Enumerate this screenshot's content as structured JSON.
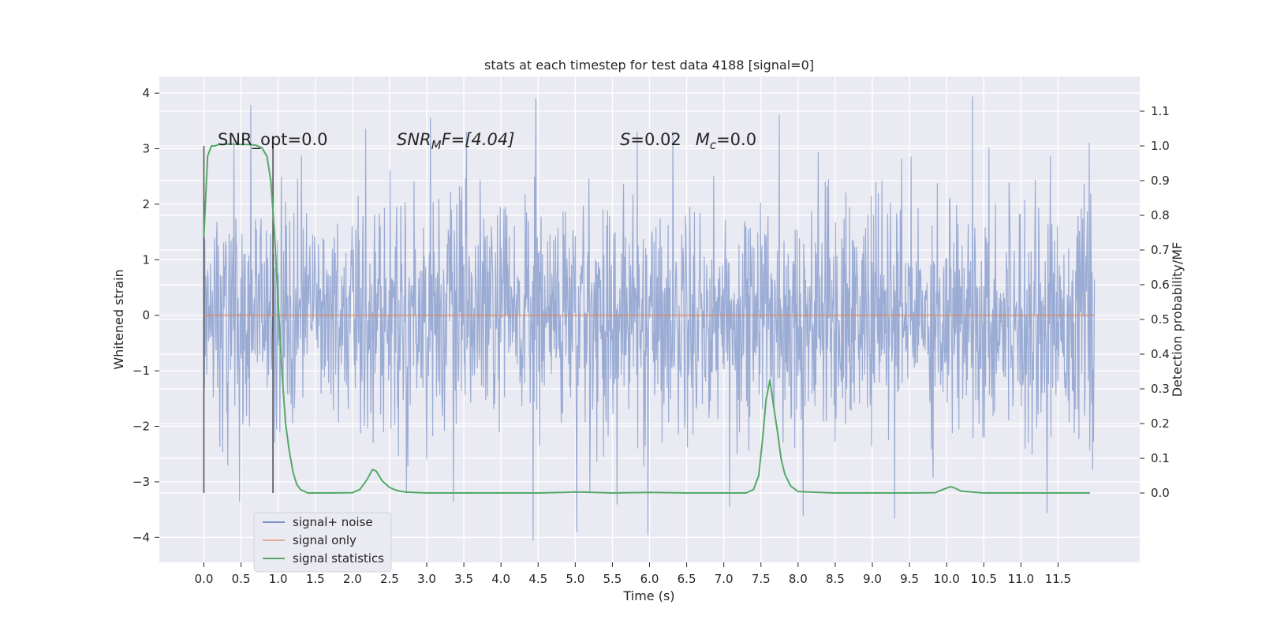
{
  "chart_data": {
    "type": "line",
    "title": "stats at each timestep for test data 4188 [signal=0]",
    "xlabel": "Time (s)",
    "ylabel": "Whitened strain",
    "y2label": "Detection probability/MF",
    "xlim": [
      -0.6,
      12.6
    ],
    "ylim": [
      -4.45,
      4.3
    ],
    "y2lim": [
      -0.2,
      1.2
    ],
    "x_ticks": [
      0.0,
      0.5,
      1.0,
      1.5,
      2.0,
      2.5,
      3.0,
      3.5,
      4.0,
      4.5,
      5.0,
      5.5,
      6.0,
      6.5,
      7.0,
      7.5,
      8.0,
      8.5,
      9.0,
      9.5,
      10.0,
      10.5,
      11.0,
      11.5
    ],
    "x_tick_labels": [
      "0.0",
      "0.5",
      "1.0",
      "1.5",
      "2.0",
      "2.5",
      "3.0",
      "3.5",
      "4.0",
      "4.5",
      "5.0",
      "5.5",
      "6.0",
      "6.5",
      "7.0",
      "7.5",
      "8.0",
      "8.5",
      "9.0",
      "9.5",
      "10.0",
      "10.5",
      "11.0",
      "11.5"
    ],
    "y_ticks": [
      -4,
      -3,
      -2,
      -1,
      0,
      1,
      2,
      3,
      4
    ],
    "y_tick_labels": [
      "−4",
      "−3",
      "−2",
      "−1",
      "0",
      "1",
      "2",
      "3",
      "4"
    ],
    "y2_ticks": [
      0.0,
      0.1,
      0.2,
      0.3,
      0.4,
      0.5,
      0.6,
      0.7,
      0.8,
      0.9,
      1.0,
      1.1
    ],
    "y2_tick_labels": [
      "0.0",
      "0.1",
      "0.2",
      "0.3",
      "0.4",
      "0.5",
      "0.6",
      "0.7",
      "0.8",
      "0.9",
      "1.0",
      "1.1"
    ],
    "grid": true,
    "legend_placement": "lower-left",
    "annotations": {
      "snr_opt": "SNR_opt=0.0",
      "snr_mf_prefix": "SNR",
      "snr_mf_sub": "M",
      "snr_mf_suffix": "F=[4.04]",
      "s_label": "S",
      "s_value": "=0.02",
      "mc_label": "M",
      "mc_sub": "c",
      "mc_value": "=0.0"
    },
    "series": [
      {
        "name": "signal+ noise",
        "color": "#7b93c7",
        "kind": "noise",
        "x_range": [
          0.0,
          11.99
        ],
        "envelope_min": -4.05,
        "envelope_max": 3.93,
        "outliers": [
          {
            "x": 0.63,
            "y": 3.78
          },
          {
            "x": 4.47,
            "y": 3.9
          },
          {
            "x": 10.35,
            "y": 3.93
          },
          {
            "x": 4.43,
            "y": -4.05
          },
          {
            "x": 5.02,
            "y": -3.9
          },
          {
            "x": 5.98,
            "y": -3.95
          },
          {
            "x": 0.48,
            "y": -3.35
          },
          {
            "x": 3.36,
            "y": -3.35
          },
          {
            "x": 9.3,
            "y": -3.65
          },
          {
            "x": 11.35,
            "y": -3.55
          },
          {
            "x": 8.07,
            "y": -3.6
          },
          {
            "x": 7.08,
            "y": -3.45
          },
          {
            "x": 5.56,
            "y": -3.4
          },
          {
            "x": 3.05,
            "y": 3.55
          },
          {
            "x": 7.75,
            "y": 3.6
          },
          {
            "x": 2.18,
            "y": 3.35
          },
          {
            "x": 11.92,
            "y": 3.1
          }
        ]
      },
      {
        "name": "signal only",
        "color": "#dd8452",
        "kind": "flat",
        "x": [
          0.0,
          11.99
        ],
        "y": [
          0.0,
          0.0
        ]
      },
      {
        "name": "signal statistics",
        "color": "#55a868",
        "kind": "line",
        "axis": "right",
        "x": [
          0.0,
          0.05,
          0.1,
          0.15,
          0.2,
          0.3,
          0.4,
          0.5,
          0.6,
          0.7,
          0.78,
          0.85,
          0.9,
          0.95,
          1.0,
          1.05,
          1.1,
          1.15,
          1.2,
          1.25,
          1.3,
          1.4,
          1.5,
          1.7,
          2.0,
          2.1,
          2.2,
          2.27,
          2.32,
          2.4,
          2.5,
          2.6,
          2.7,
          3.0,
          3.5,
          4.0,
          4.5,
          4.9,
          5.0,
          5.2,
          5.5,
          6.0,
          6.5,
          7.0,
          7.3,
          7.4,
          7.47,
          7.52,
          7.57,
          7.62,
          7.67,
          7.72,
          7.77,
          7.82,
          7.9,
          8.0,
          8.5,
          9.0,
          9.5,
          9.85,
          9.95,
          10.05,
          10.1,
          10.2,
          10.5,
          11.0,
          11.5,
          11.93
        ],
        "y": [
          0.74,
          0.97,
          1.0,
          1.0,
          1.004,
          1.005,
          1.005,
          1.004,
          1.004,
          1.002,
          0.995,
          0.97,
          0.9,
          0.75,
          0.55,
          0.35,
          0.2,
          0.12,
          0.06,
          0.025,
          0.01,
          0.0,
          0.0,
          0.0,
          0.001,
          0.01,
          0.04,
          0.068,
          0.063,
          0.035,
          0.016,
          0.007,
          0.003,
          0.0,
          0.0,
          0.0,
          0.0,
          0.002,
          0.003,
          0.002,
          0.0,
          0.0015,
          0.0,
          0.0,
          0.0,
          0.01,
          0.05,
          0.15,
          0.27,
          0.325,
          0.25,
          0.18,
          0.1,
          0.055,
          0.02,
          0.004,
          0.0,
          0.0,
          0.0,
          0.001,
          0.01,
          0.018,
          0.015,
          0.005,
          0.0,
          0.0,
          0.0,
          0.0
        ]
      }
    ],
    "vertical_markers": [
      {
        "x": 0.0,
        "y_from": -3.2,
        "y_to": 3.05
      },
      {
        "x": 0.93,
        "y_from": -3.2,
        "y_to": 3.05
      }
    ]
  }
}
